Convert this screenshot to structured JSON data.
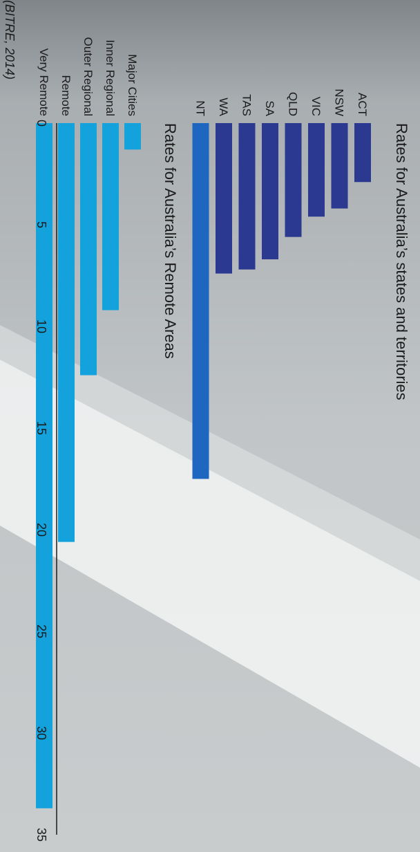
{
  "colors": {
    "states": "#2b3990",
    "states_highlight": "#1f66c1",
    "remote": "#13a2dc",
    "text": "#1b1b1b",
    "axis": "#1b1b1b"
  },
  "chart_data": [
    {
      "type": "bar",
      "orientation": "horizontal",
      "title": "Rates for Australia’s states and territories",
      "categories": [
        "ACT",
        "NSW",
        "VIC",
        "QLD",
        "SA",
        "TAS",
        "WA",
        "NT"
      ],
      "values": [
        2.9,
        4.2,
        4.6,
        5.6,
        6.7,
        7.2,
        7.4,
        17.5
      ],
      "xlim": [
        0,
        35
      ],
      "grid": false,
      "legend": "none"
    },
    {
      "type": "bar",
      "orientation": "horizontal",
      "title": "Rates for Australia’s Remote Areas",
      "categories": [
        "Major Cities",
        "Inner Regional",
        "Outer Regional",
        "Remote",
        "Very Remote"
      ],
      "values": [
        1.3,
        9.2,
        12.4,
        20.6,
        33.7
      ],
      "xlim": [
        0,
        35
      ],
      "xticks": [
        0,
        5,
        10,
        15,
        20,
        25,
        30,
        35
      ],
      "grid": false,
      "legend": "none"
    }
  ],
  "source": "(BITRE, 2014)"
}
